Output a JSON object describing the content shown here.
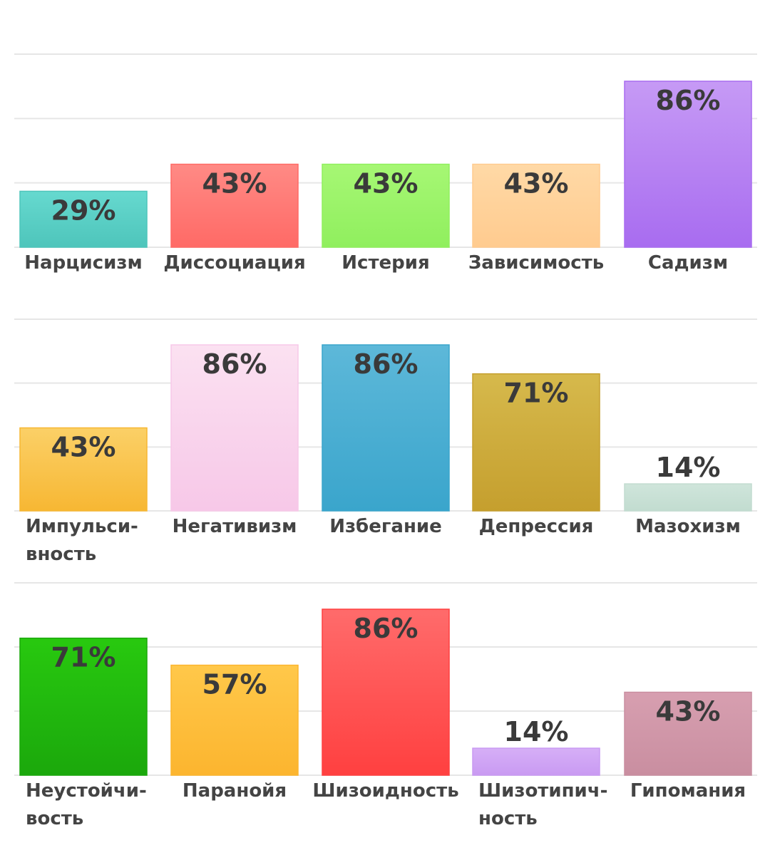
{
  "chart_data": [
    {
      "type": "bar",
      "categories": [
        [
          "Нарцисизм"
        ],
        [
          "Диссоциация"
        ],
        [
          "Истерия"
        ],
        [
          "Зависимость"
        ],
        [
          "Садизм"
        ]
      ],
      "values": [
        29,
        43,
        43,
        43,
        86
      ],
      "value_labels": [
        "29%",
        "43%",
        "43%",
        "43%",
        "86%"
      ],
      "colors": [
        [
          "#66d9cf",
          "#4ec5bb"
        ],
        [
          "#ff8a85",
          "#ff6a66"
        ],
        [
          "#a6f774",
          "#90ef5e"
        ],
        [
          "#ffd9a6",
          "#ffcb8f"
        ],
        [
          "#c69af5",
          "#a86cf0"
        ]
      ],
      "ylim": [
        0,
        100
      ],
      "grid": true
    },
    {
      "type": "bar",
      "categories": [
        [
          "Импульси-",
          "вность"
        ],
        [
          "Негативизм"
        ],
        [
          "Избегание"
        ],
        [
          "Депрессия"
        ],
        [
          "Мазохизм"
        ]
      ],
      "values": [
        43,
        86,
        86,
        71,
        14
      ],
      "value_labels": [
        "43%",
        "86%",
        "86%",
        "71%",
        "14%"
      ],
      "colors": [
        [
          "#fbd067",
          "#f7b733"
        ],
        [
          "#fbe1f1",
          "#f7c8e8"
        ],
        [
          "#5db8d9",
          "#3aa5cc"
        ],
        [
          "#d6b94c",
          "#c59f2e"
        ],
        [
          "#cfe5db",
          "#c2dcd0"
        ]
      ],
      "ylim": [
        0,
        100
      ],
      "grid": true
    },
    {
      "type": "bar",
      "categories": [
        [
          "Неустойчи-",
          "вость"
        ],
        [
          "Паранойя"
        ],
        [
          "Шизоидность"
        ],
        [
          "Шизотипич-",
          "ность"
        ],
        [
          "Гипомания"
        ]
      ],
      "values": [
        71,
        57,
        86,
        14,
        43
      ],
      "value_labels": [
        "71%",
        "57%",
        "86%",
        "14%",
        "43%"
      ],
      "colors": [
        [
          "#28c90f",
          "#1ba80c"
        ],
        [
          "#ffc84a",
          "#fcb52f"
        ],
        [
          "#ff6b6b",
          "#ff4040"
        ],
        [
          "#d6aff7",
          "#c99af2"
        ],
        [
          "#d79fb0",
          "#c98ea0"
        ]
      ],
      "ylim": [
        0,
        100
      ],
      "grid": true
    }
  ]
}
